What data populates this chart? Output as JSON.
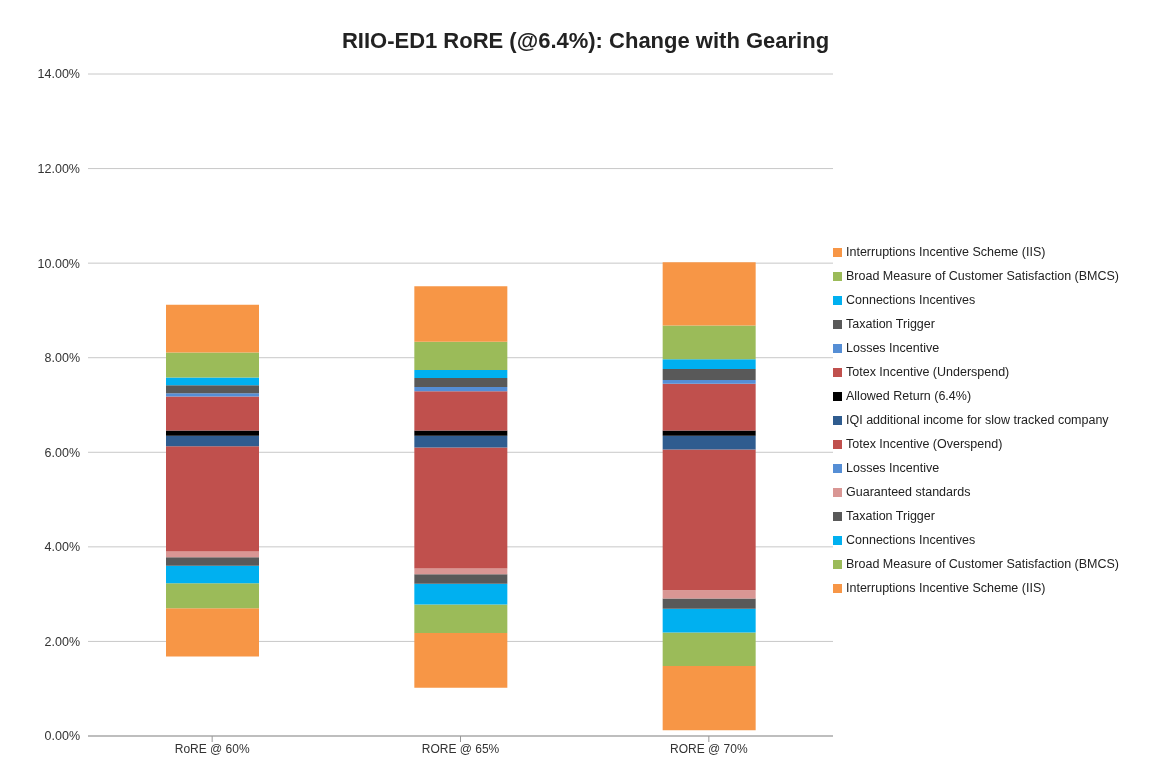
{
  "chart_data": {
    "type": "bar",
    "title": "RIIO-ED1 RoRE (@6.4%): Change with Gearing",
    "categories": [
      "RoRE @ 60%",
      "RORE @ 65%",
      "RORE @ 70%"
    ],
    "stacked": true,
    "series": [
      {
        "name": "Interruptions Incentive Scheme (IIS)",
        "color": "#f79646",
        "values": [
          1.02,
          1.16,
          1.36
        ],
        "base": [
          1.68,
          1.02,
          0.12
        ]
      },
      {
        "name": "Broad Measure of Customer Satisfaction (BMCS)",
        "color": "#9bbb59",
        "values": [
          0.53,
          0.6,
          0.71
        ]
      },
      {
        "name": "Connections Incentives",
        "color": "#00b0f0",
        "values": [
          0.37,
          0.44,
          0.5
        ]
      },
      {
        "name": "Taxation Trigger",
        "color": "#595959",
        "values": [
          0.18,
          0.2,
          0.22
        ]
      },
      {
        "name": "Guaranteed standards",
        "color": "#d99694",
        "values": [
          0.12,
          0.12,
          0.17
        ]
      },
      {
        "name": "Losses Incentive",
        "color": "#558ed5",
        "values": [
          null,
          null,
          null
        ]
      },
      {
        "name": "Totex Incentive (Overspend)",
        "color": "#c0504d",
        "values": [
          2.23,
          2.56,
          2.98
        ]
      },
      {
        "name": "IQI additional income for slow tracked company",
        "color": "#2f5c8f",
        "values": [
          0.22,
          0.25,
          0.29
        ]
      },
      {
        "name": "Allowed Return (6.4%)",
        "color": "#000000",
        "values": [
          0.11,
          0.11,
          0.11
        ]
      },
      {
        "name": "Totex Incentive (Underspend)",
        "color": "#c0504d",
        "values": [
          0.72,
          0.83,
          0.99
        ]
      },
      {
        "name": "Losses Incentive",
        "color": "#558ed5",
        "values": [
          0.07,
          0.09,
          0.08
        ]
      },
      {
        "name": "Taxation Trigger",
        "color": "#595959",
        "values": [
          0.17,
          0.19,
          0.23
        ]
      },
      {
        "name": "Connections Incentives",
        "color": "#00b0f0",
        "values": [
          0.16,
          0.17,
          0.21
        ]
      },
      {
        "name": "Broad Measure of Customer Satisfaction (BMCS)",
        "color": "#9bbb59",
        "values": [
          0.53,
          0.6,
          0.71
        ]
      },
      {
        "name": "Interruptions Incentive Scheme (IIS)",
        "color": "#f79646",
        "values": [
          1.01,
          1.17,
          1.34
        ]
      }
    ],
    "ylim": [
      0,
      14
    ],
    "yticks": [
      {
        "value": 0,
        "label": "0.00%"
      },
      {
        "value": 2,
        "label": "2.00%"
      },
      {
        "value": 4,
        "label": "4.00%"
      },
      {
        "value": 6,
        "label": "6.00%"
      },
      {
        "value": 8,
        "label": "8.00%"
      },
      {
        "value": 10,
        "label": "10.00%"
      },
      {
        "value": 12,
        "label": "12.00%"
      },
      {
        "value": 14,
        "label": "14.00%"
      }
    ],
    "grid": "y",
    "legend": "right"
  }
}
